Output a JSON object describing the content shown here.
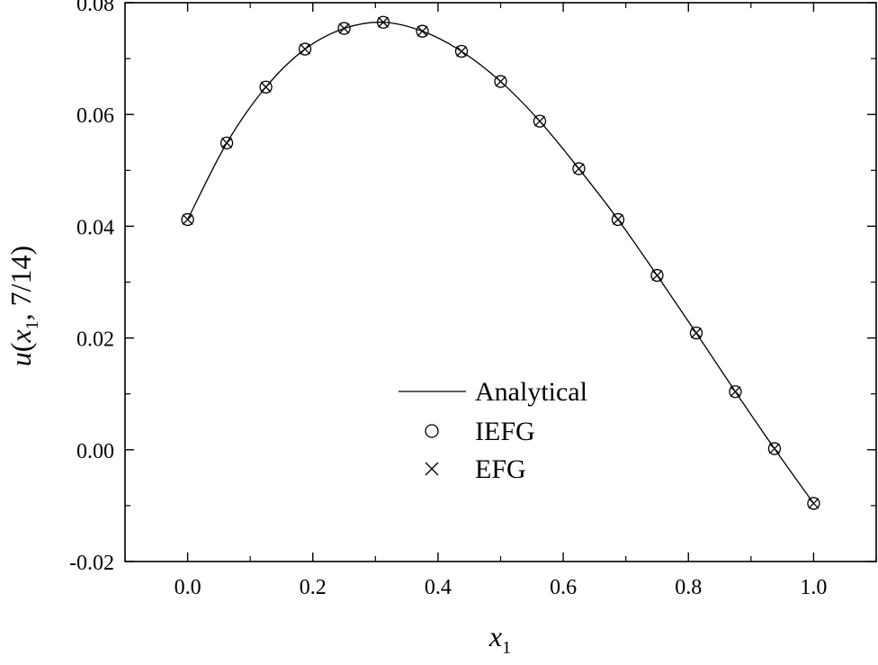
{
  "chart_data": {
    "type": "line",
    "xlabel": {
      "main": "x",
      "sub": "1"
    },
    "ylabel": {
      "main": "u",
      "open": "(",
      "var": "x",
      "sub": "1",
      "rest": ", 7/14)"
    },
    "xlim": [
      -0.1,
      1.1
    ],
    "ylim": [
      -0.02,
      0.08
    ],
    "x_ticks": [
      "0.0",
      "0.2",
      "0.4",
      "0.6",
      "0.8",
      "1.0"
    ],
    "y_ticks": [
      "-0.02",
      "0.00",
      "0.02",
      "0.04",
      "0.06",
      "0.08"
    ],
    "legend": {
      "placement": "center",
      "items": [
        {
          "label": "Analytical",
          "marker": "line"
        },
        {
          "label": "IEFG",
          "marker": "circle"
        },
        {
          "label": "EFG",
          "marker": "cross"
        }
      ]
    },
    "series": [
      {
        "name": "Analytical",
        "style": "line",
        "x": [
          0.0,
          0.0625,
          0.125,
          0.1875,
          0.25,
          0.3125,
          0.375,
          0.4375,
          0.5,
          0.5625,
          0.625,
          0.6875,
          0.75,
          0.8125,
          0.875,
          0.9375,
          1.0
        ],
        "y": [
          0.0412,
          0.0549,
          0.0649,
          0.0717,
          0.0754,
          0.0765,
          0.0749,
          0.0713,
          0.0659,
          0.0588,
          0.0503,
          0.0412,
          0.0312,
          0.0209,
          0.0104,
          0.0002,
          -0.0096
        ]
      },
      {
        "name": "IEFG",
        "style": "circle",
        "x": [
          0.0,
          0.0625,
          0.125,
          0.1875,
          0.25,
          0.3125,
          0.375,
          0.4375,
          0.5,
          0.5625,
          0.625,
          0.6875,
          0.75,
          0.8125,
          0.875,
          0.9375,
          1.0
        ],
        "y": [
          0.0412,
          0.0549,
          0.0649,
          0.0717,
          0.0754,
          0.0765,
          0.0749,
          0.0713,
          0.0659,
          0.0588,
          0.0503,
          0.0412,
          0.0312,
          0.0209,
          0.0104,
          0.0002,
          -0.0096
        ]
      },
      {
        "name": "EFG",
        "style": "cross",
        "x": [
          0.0,
          0.0625,
          0.125,
          0.1875,
          0.25,
          0.3125,
          0.375,
          0.4375,
          0.5,
          0.5625,
          0.625,
          0.6875,
          0.75,
          0.8125,
          0.875,
          0.9375,
          1.0
        ],
        "y": [
          0.0412,
          0.0549,
          0.0649,
          0.0717,
          0.0754,
          0.0765,
          0.0749,
          0.0713,
          0.0659,
          0.0588,
          0.0503,
          0.0412,
          0.0312,
          0.0209,
          0.0104,
          0.0002,
          -0.0096
        ]
      }
    ]
  }
}
